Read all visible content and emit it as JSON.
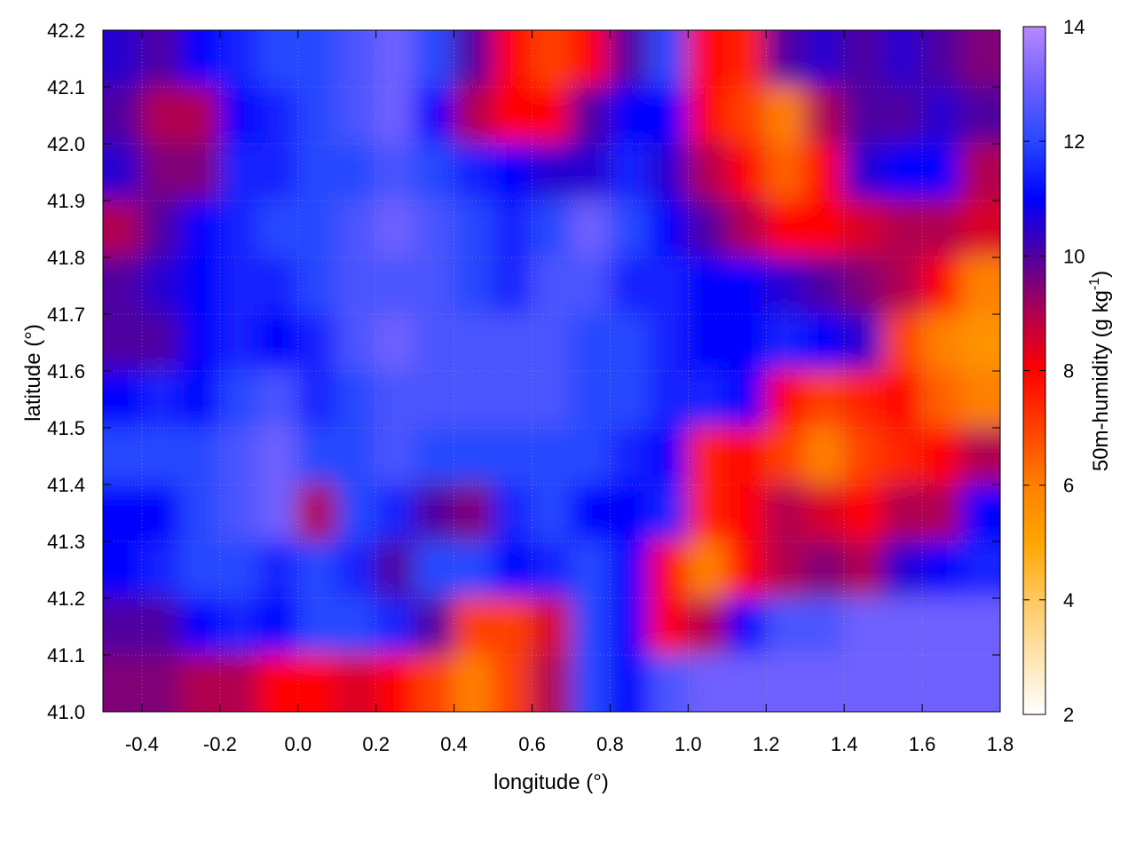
{
  "chart_data": {
    "type": "heatmap",
    "title": "",
    "xlabel": "longitude (°)",
    "ylabel": "latitude (°)",
    "xlim": [
      -0.5,
      1.8
    ],
    "ylim": [
      41.0,
      42.2
    ],
    "xticks": [
      "-0.4",
      "-0.2",
      "0.0",
      "0.2",
      "0.4",
      "0.6",
      "0.8",
      "1.0",
      "1.2",
      "1.4",
      "1.6",
      "1.8"
    ],
    "yticks": [
      "41.0",
      "41.1",
      "41.2",
      "41.3",
      "41.4",
      "41.5",
      "41.6",
      "41.7",
      "41.8",
      "41.9",
      "42.0",
      "42.1",
      "42.2"
    ],
    "grid": true,
    "colorbar": {
      "label": "50m-humidity (g kg",
      "label_sup": "-1",
      "label_end": ")",
      "range": [
        2,
        14
      ],
      "ticks": [
        "2",
        "4",
        "6",
        "8",
        "10",
        "12",
        "14"
      ],
      "palette": [
        {
          "v": 2,
          "c": "#ffffff"
        },
        {
          "v": 4,
          "c": "#ffc860"
        },
        {
          "v": 5,
          "c": "#ffa500"
        },
        {
          "v": 6,
          "c": "#ff8000"
        },
        {
          "v": 7,
          "c": "#ff4000"
        },
        {
          "v": 8,
          "c": "#ff0000"
        },
        {
          "v": 9,
          "c": "#b00050"
        },
        {
          "v": 10,
          "c": "#5000a0"
        },
        {
          "v": 11,
          "c": "#0000ff"
        },
        {
          "v": 12,
          "c": "#2848ff"
        },
        {
          "v": 13,
          "c": "#7060ff"
        },
        {
          "v": 14,
          "c": "#b888ff"
        }
      ]
    },
    "grid_lon_start": -0.5,
    "grid_lat_top": 42.2,
    "grid_step": 0.1,
    "values": [
      [
        10.5,
        10,
        11,
        11.5,
        12,
        12,
        12.5,
        13,
        12,
        10,
        8,
        7,
        8,
        10,
        12,
        8,
        7.5,
        10,
        10.5,
        10,
        10.5,
        10,
        9.5
      ],
      [
        10,
        9,
        9,
        11,
        11.5,
        12,
        12.5,
        13,
        11,
        9,
        8,
        8,
        10,
        11,
        11,
        8,
        7,
        6,
        9,
        10,
        10,
        10.5,
        10
      ],
      [
        10.5,
        9.5,
        9.5,
        11.5,
        11.5,
        12,
        12,
        12.5,
        12,
        11.5,
        11,
        10.5,
        10.5,
        11.5,
        10.5,
        9,
        8,
        6.5,
        8,
        10.5,
        11,
        11,
        9
      ],
      [
        9,
        10,
        11,
        11.5,
        12,
        12,
        12.5,
        13,
        12.5,
        12,
        11.5,
        12,
        13,
        12,
        11,
        10,
        9,
        8,
        8,
        8.5,
        9,
        9,
        8.5
      ],
      [
        10,
        10.5,
        11,
        11.5,
        11.5,
        12,
        12.5,
        12.5,
        12.5,
        12,
        11.5,
        12.5,
        12.5,
        11.5,
        11.5,
        11,
        11,
        10.5,
        10,
        9.5,
        9,
        8,
        6
      ],
      [
        10,
        10,
        11,
        11.5,
        11,
        11.5,
        12.5,
        13,
        12.5,
        12.5,
        12.5,
        12.5,
        12,
        12,
        11.5,
        11,
        11,
        11.5,
        11,
        10.5,
        7,
        6,
        5.5
      ],
      [
        11,
        11.5,
        11,
        12,
        12.5,
        11.5,
        12,
        12.5,
        12.5,
        12.5,
        12.5,
        12.5,
        12,
        12,
        11.5,
        11.5,
        11,
        8,
        7,
        7.5,
        8,
        6.5,
        6
      ],
      [
        12,
        12,
        12,
        12.5,
        13,
        12,
        12,
        12.5,
        12,
        12,
        12,
        12,
        12,
        11.5,
        11,
        7.5,
        8,
        7,
        6,
        7,
        7.5,
        8,
        9
      ],
      [
        11,
        11,
        12,
        12.5,
        13,
        9,
        12,
        11.5,
        10,
        9.5,
        11.5,
        12,
        11,
        11,
        11.5,
        7.5,
        8,
        9,
        8.5,
        8,
        9,
        9,
        11
      ],
      [
        11,
        11.5,
        12,
        12,
        11.5,
        12,
        11.5,
        10,
        12,
        12,
        11,
        11.5,
        12,
        11,
        8,
        6,
        8,
        9,
        9.5,
        9,
        10.5,
        11,
        11.5
      ],
      [
        10,
        10,
        11,
        11.5,
        11,
        12,
        12,
        11.5,
        10,
        7,
        7,
        8.5,
        12,
        11,
        8,
        9,
        11,
        12.5,
        12.5,
        13,
        13,
        13,
        13
      ],
      [
        9.5,
        9.5,
        9,
        9,
        8,
        8,
        8.5,
        8,
        7,
        6,
        7,
        9,
        12,
        11,
        12.5,
        13,
        13,
        13,
        13,
        13,
        13,
        13,
        13
      ]
    ]
  }
}
